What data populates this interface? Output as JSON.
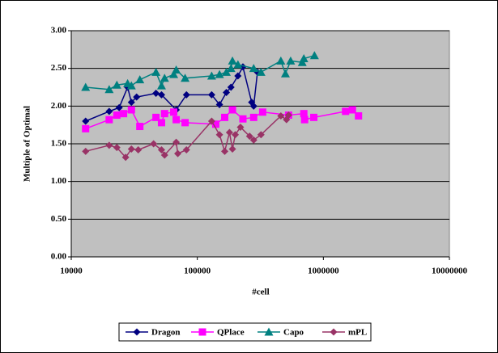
{
  "chart_data": {
    "type": "scatter-line",
    "x_label": "#cell",
    "y_label": "Multiple of Optimal",
    "xscale": "log",
    "grid": true,
    "legend": "bottom",
    "xlim": [
      10000,
      10000000
    ],
    "xticks": [
      10000,
      100000,
      1000000,
      10000000
    ],
    "ylim": [
      0,
      3
    ],
    "yticks": [
      {
        "value": 0,
        "label": "0.00"
      },
      {
        "value": 0.5,
        "label": "0.50"
      },
      {
        "value": 1,
        "label": "1.00"
      },
      {
        "value": 1.5,
        "label": "1.50"
      },
      {
        "value": 2,
        "label": "2.00"
      },
      {
        "value": 2.5,
        "label": "2.50"
      },
      {
        "value": 3,
        "label": "3.00"
      }
    ],
    "series": [
      {
        "name": "Dragon",
        "color": "#000080",
        "marker": "diamond",
        "x": [
          13000,
          20000,
          24000,
          28000,
          30000,
          33000,
          47000,
          52000,
          68000,
          82000,
          130000,
          150000,
          170000,
          185000,
          210000,
          230000,
          270000,
          280000,
          300000
        ],
        "values": [
          1.8,
          1.93,
          1.98,
          2.25,
          2.05,
          2.12,
          2.17,
          2.15,
          1.95,
          2.15,
          2.15,
          2.02,
          2.18,
          2.25,
          2.4,
          2.52,
          2.05,
          2.0,
          2.45
        ]
      },
      {
        "name": "QPlace",
        "color": "#ff00ff",
        "marker": "square",
        "x": [
          13000,
          20000,
          23000,
          26000,
          30000,
          35000,
          47000,
          52000,
          55000,
          65000,
          68000,
          80000,
          140000,
          165000,
          190000,
          230000,
          280000,
          330000,
          530000,
          700000,
          710000,
          840000,
          1500000,
          1700000,
          1900000
        ],
        "values": [
          1.7,
          1.82,
          1.88,
          1.9,
          1.95,
          1.73,
          1.85,
          1.78,
          1.9,
          1.92,
          1.82,
          1.78,
          1.76,
          1.85,
          1.95,
          1.83,
          1.85,
          1.92,
          1.88,
          1.9,
          1.82,
          1.85,
          1.93,
          1.95,
          1.87
        ]
      },
      {
        "name": "Capo",
        "color": "#008080",
        "marker": "triangle",
        "x": [
          13000,
          20000,
          23000,
          28000,
          30000,
          35000,
          47000,
          52000,
          55000,
          65000,
          68000,
          80000,
          130000,
          150000,
          170000,
          185000,
          190000,
          210000,
          280000,
          320000,
          460000,
          500000,
          550000,
          680000,
          700000,
          850000
        ],
        "values": [
          2.25,
          2.22,
          2.28,
          2.3,
          2.27,
          2.35,
          2.45,
          2.27,
          2.37,
          2.42,
          2.48,
          2.37,
          2.4,
          2.42,
          2.45,
          2.5,
          2.6,
          2.55,
          2.5,
          2.45,
          2.6,
          2.43,
          2.6,
          2.58,
          2.63,
          2.67
        ]
      },
      {
        "name": "mPL",
        "color": "#993366",
        "marker": "diamond",
        "x": [
          13000,
          20000,
          23000,
          27000,
          30000,
          34000,
          45000,
          52000,
          55000,
          68000,
          70000,
          82000,
          130000,
          150000,
          165000,
          180000,
          190000,
          200000,
          220000,
          260000,
          280000,
          320000,
          460000,
          510000,
          530000
        ],
        "values": [
          1.4,
          1.48,
          1.45,
          1.32,
          1.43,
          1.42,
          1.5,
          1.42,
          1.35,
          1.52,
          1.37,
          1.42,
          1.8,
          1.62,
          1.4,
          1.65,
          1.43,
          1.62,
          1.72,
          1.6,
          1.55,
          1.62,
          1.87,
          1.82,
          1.88
        ]
      }
    ]
  }
}
